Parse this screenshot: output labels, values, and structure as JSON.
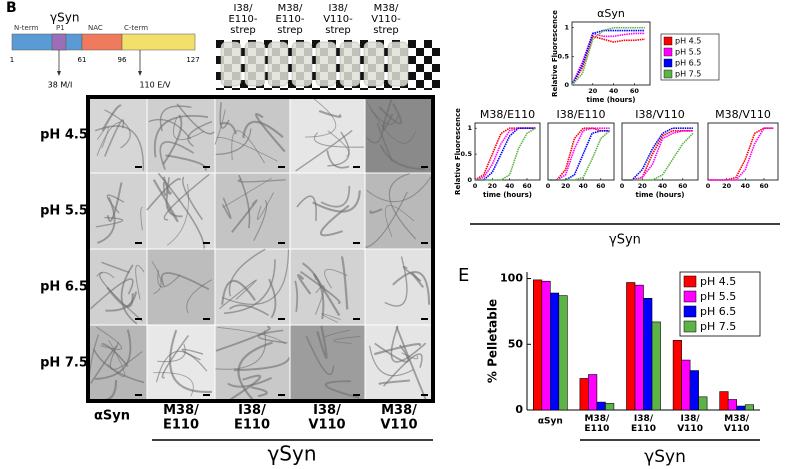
{
  "panel_a": {
    "letter": "B",
    "title": "γSyn",
    "domains": [
      "N-term",
      "P1",
      "NAC",
      "C-term"
    ],
    "positions": [
      1,
      61,
      96,
      127
    ],
    "mutations": [
      "38 M/I",
      "110 E/V"
    ]
  },
  "panel_b": {
    "labels": [
      "I38/\nE110-\nstrep",
      "M38/\nE110-\nstrep",
      "I38/\nV110-\nstrep",
      "M38/\nV110-\nstrep"
    ]
  },
  "panel_c": {
    "rows": [
      "pH 4.5",
      "pH 5.5",
      "pH 6.5",
      "pH 7.5"
    ],
    "columns": [
      "αSyn",
      "M38/\nE110",
      "I38/\nE110",
      "I38/\nV110",
      "M38/\nV110"
    ],
    "group_label": "γSyn"
  },
  "panel_d": {
    "group_label": "γSyn"
  },
  "panel_e": {
    "letter": "E",
    "group_label": "γSyn"
  },
  "chart_data": [
    {
      "type": "line",
      "title": "αSyn",
      "ylabel": "Relative Fluorescence",
      "xlabel": "time (hours)",
      "x": [
        0,
        10,
        20,
        30,
        40,
        50,
        60,
        70
      ],
      "xlim": [
        0,
        75
      ],
      "ylim": [
        0,
        1.1
      ],
      "xticks": [
        20,
        40,
        60
      ],
      "yticks": [
        0,
        0.5,
        1
      ],
      "legend": "right",
      "series": [
        {
          "name": "pH 4.5",
          "color": "#ff0000",
          "values": [
            0,
            0.3,
            0.85,
            0.8,
            0.75,
            0.78,
            0.78,
            0.8
          ]
        },
        {
          "name": "pH 5.5",
          "color": "#ff00ff",
          "values": [
            0,
            0.4,
            0.9,
            0.85,
            0.85,
            0.88,
            0.9,
            0.9
          ]
        },
        {
          "name": "pH 6.5",
          "color": "#0000ff",
          "values": [
            0,
            0.35,
            0.9,
            0.95,
            0.95,
            0.95,
            0.95,
            0.95
          ]
        },
        {
          "name": "pH 7.5",
          "color": "#5cb346",
          "values": [
            0,
            0.2,
            0.8,
            0.95,
            1,
            1,
            1,
            1
          ]
        }
      ]
    },
    {
      "type": "line",
      "title": "M38/E110",
      "ylabel": "Relative Fluorescence",
      "xlabel": "time (hours)",
      "x": [
        0,
        10,
        20,
        30,
        40,
        50,
        60,
        70
      ],
      "xlim": [
        0,
        75
      ],
      "ylim": [
        0,
        1.1
      ],
      "xticks": [
        0,
        20,
        40,
        60
      ],
      "yticks": [
        0,
        0.5,
        1
      ],
      "series": [
        {
          "color": "#ff0000",
          "values": [
            0,
            0.1,
            0.5,
            0.9,
            1,
            1,
            1,
            1
          ]
        },
        {
          "color": "#ff00ff",
          "values": [
            0,
            0.05,
            0.3,
            0.7,
            0.95,
            1,
            1,
            1
          ]
        },
        {
          "color": "#0000ff",
          "values": [
            0,
            0,
            0.15,
            0.5,
            0.85,
            1,
            1,
            1
          ]
        },
        {
          "color": "#5cb346",
          "values": [
            0,
            0,
            0,
            0,
            0.1,
            0.6,
            0.9,
            1
          ]
        }
      ]
    },
    {
      "type": "line",
      "title": "I38/E110",
      "x": [
        0,
        10,
        20,
        30,
        40,
        50,
        60,
        70
      ],
      "xlim": [
        0,
        75
      ],
      "ylim": [
        0,
        1.1
      ],
      "xticks": [
        0,
        20,
        40,
        60
      ],
      "series": [
        {
          "color": "#ff0000",
          "values": [
            0,
            0,
            0.2,
            0.8,
            1,
            1,
            0.95,
            0.95
          ]
        },
        {
          "color": "#ff00ff",
          "values": [
            0,
            0,
            0.1,
            0.6,
            0.95,
            1,
            1,
            1
          ]
        },
        {
          "color": "#0000ff",
          "values": [
            0,
            0,
            0,
            0.1,
            0.5,
            0.9,
            0.95,
            0.95
          ]
        },
        {
          "color": "#5cb346",
          "values": [
            0,
            0,
            0,
            0,
            0.05,
            0.4,
            0.8,
            0.95
          ]
        }
      ]
    },
    {
      "type": "line",
      "title": "I38/V110",
      "xlabel": "time (hours)",
      "x": [
        0,
        10,
        20,
        30,
        40,
        50,
        60,
        70
      ],
      "xlim": [
        0,
        75
      ],
      "ylim": [
        0,
        1.1
      ],
      "xticks": [
        0,
        20,
        40,
        60
      ],
      "series": [
        {
          "color": "#ff0000",
          "values": [
            0,
            0,
            0.05,
            0.5,
            0.85,
            0.95,
            0.95,
            0.95
          ]
        },
        {
          "color": "#ff00ff",
          "values": [
            0,
            0,
            0.05,
            0.3,
            0.8,
            0.9,
            0.95,
            0.95
          ]
        },
        {
          "color": "#0000ff",
          "values": [
            0,
            0,
            0.2,
            0.6,
            0.9,
            1,
            1,
            1
          ]
        },
        {
          "color": "#5cb346",
          "values": [
            0,
            0,
            0,
            0,
            0.1,
            0.4,
            0.7,
            0.9
          ]
        }
      ]
    },
    {
      "type": "line",
      "title": "M38/V110",
      "x": [
        0,
        10,
        20,
        30,
        40,
        50,
        60,
        70
      ],
      "xlim": [
        0,
        75
      ],
      "ylim": [
        0,
        1.1
      ],
      "xticks": [
        0,
        20,
        40,
        60
      ],
      "series": [
        {
          "color": "#ff0000",
          "values": [
            0,
            0,
            0,
            0.05,
            0.4,
            0.9,
            1,
            1
          ]
        },
        {
          "color": "#ff00ff",
          "values": [
            0,
            0,
            0,
            0,
            0.2,
            0.7,
            1,
            1
          ]
        }
      ]
    },
    {
      "type": "bar",
      "ylabel": "% Pelletable",
      "categories": [
        "αSyn",
        "M38/\nE110",
        "I38/\nE110",
        "I38/\nV110",
        "M38/\nV110"
      ],
      "ylim": [
        0,
        105
      ],
      "yticks": [
        0,
        50,
        100
      ],
      "legend": "upper right",
      "series": [
        {
          "name": "pH 4.5",
          "color": "#ff0000",
          "values": [
            99,
            24,
            97,
            53,
            14
          ]
        },
        {
          "name": "pH 5.5",
          "color": "#ff00ff",
          "values": [
            98,
            27,
            95,
            38,
            8
          ]
        },
        {
          "name": "pH 6.5",
          "color": "#0000ff",
          "values": [
            89,
            6,
            85,
            30,
            3
          ]
        },
        {
          "name": "pH 7.5",
          "color": "#5cb346",
          "values": [
            87,
            5,
            67,
            10,
            4
          ]
        }
      ]
    }
  ]
}
